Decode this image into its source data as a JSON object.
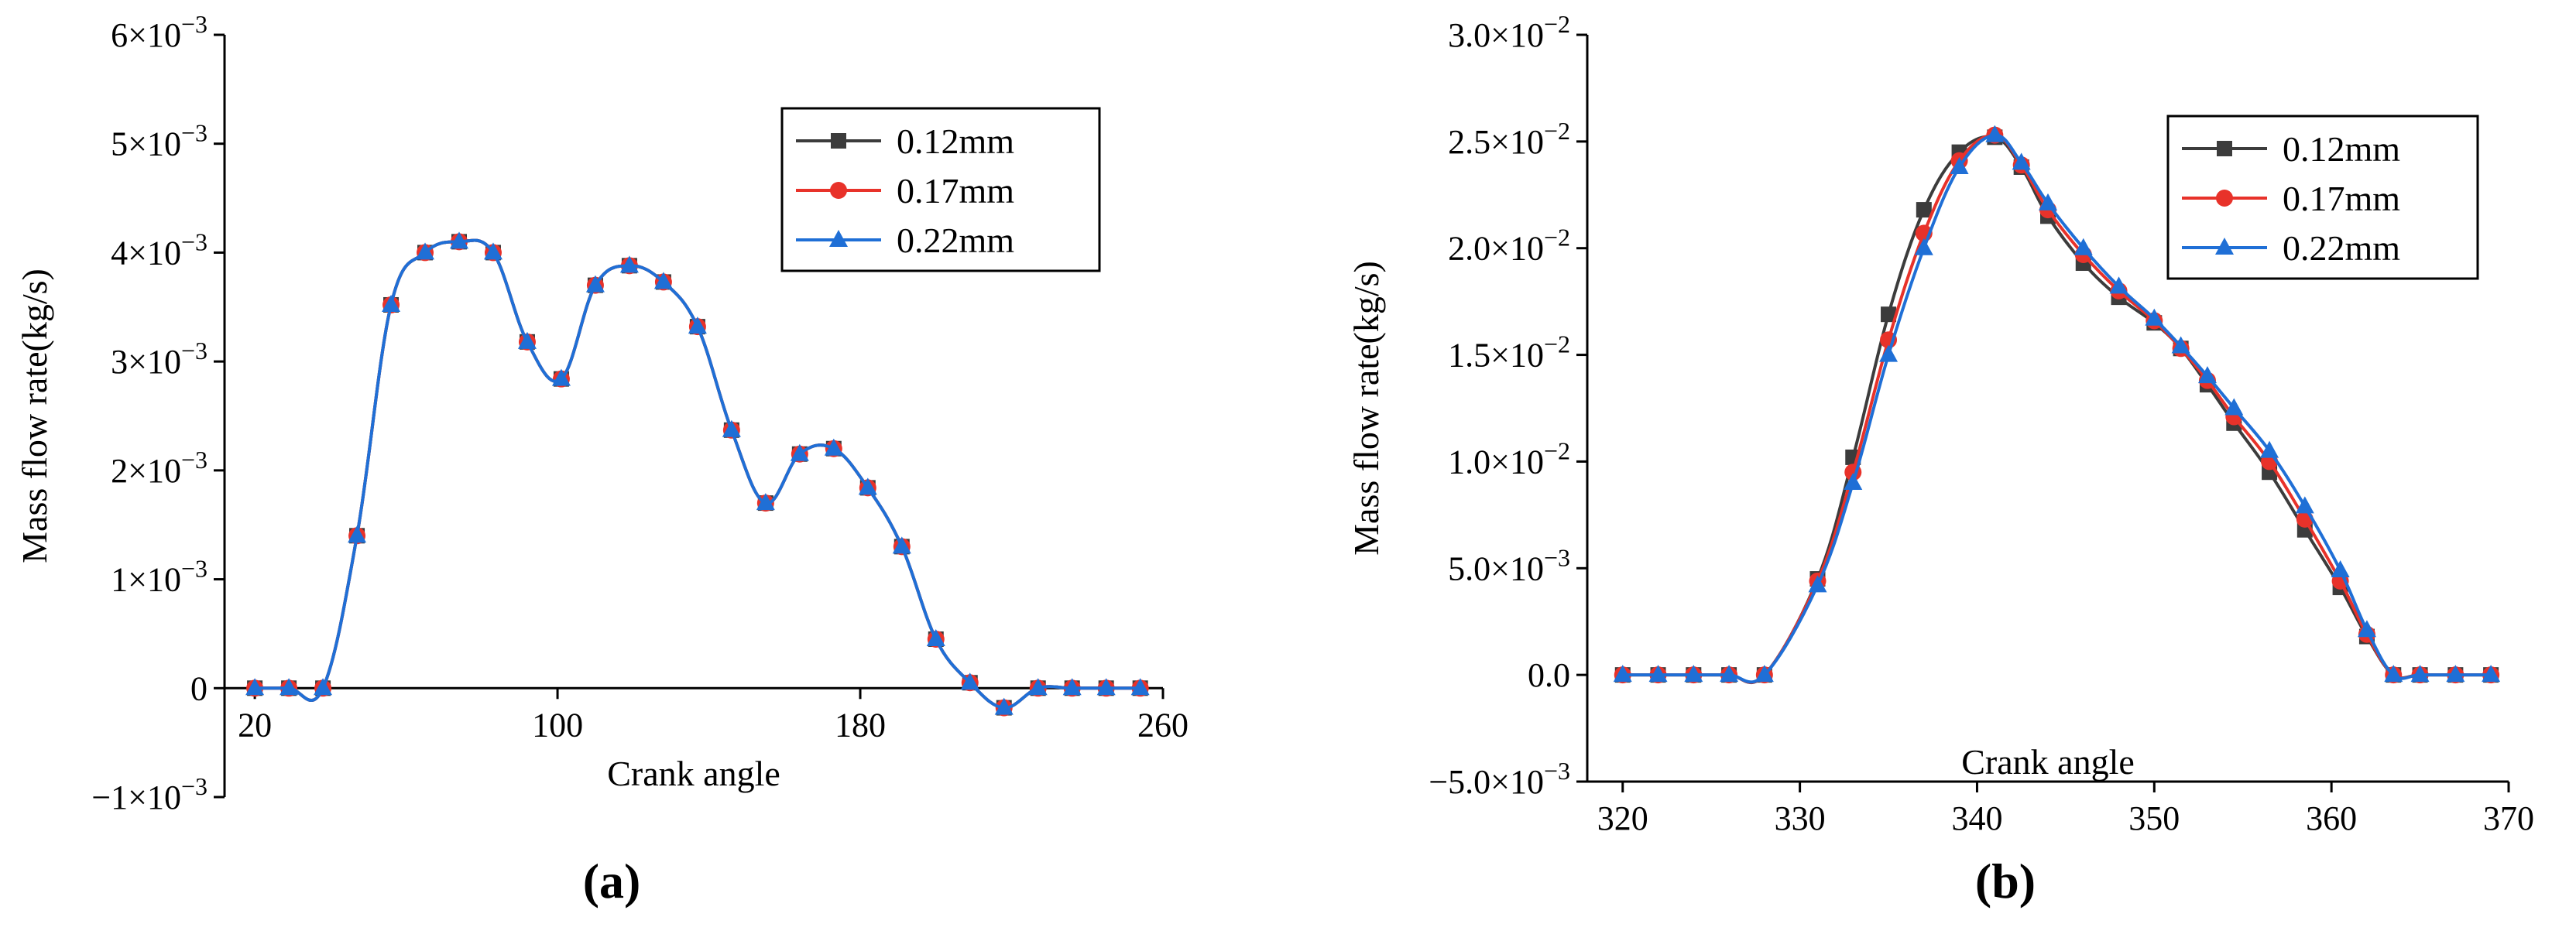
{
  "colors": {
    "0.12mm": "#3c3c3c",
    "0.17mm": "#e8322a",
    "0.22mm": "#1f6fd6"
  },
  "chart_data": [
    {
      "type": "line",
      "panel_label": "(a)",
      "xlabel": "Crank angle",
      "ylabel": "Mass flow rate(kg/s)",
      "xlim": [
        12,
        260
      ],
      "ylim": [
        -0.001,
        0.006
      ],
      "x_ticks": [
        {
          "value": 20,
          "label": "20"
        },
        {
          "value": 100,
          "label": "100"
        },
        {
          "value": 180,
          "label": "180"
        },
        {
          "value": 260,
          "label": "260"
        }
      ],
      "y_ticks": [
        {
          "value": -0.001,
          "mant": "−1×10",
          "exp": "−3"
        },
        {
          "value": 0,
          "mant": "0",
          "exp": ""
        },
        {
          "value": 0.001,
          "mant": "1×10",
          "exp": "−3"
        },
        {
          "value": 0.002,
          "mant": "2×10",
          "exp": "−3"
        },
        {
          "value": 0.003,
          "mant": "3×10",
          "exp": "−3"
        },
        {
          "value": 0.004,
          "mant": "4×10",
          "exp": "−3"
        },
        {
          "value": 0.005,
          "mant": "5×10",
          "exp": "−3"
        },
        {
          "value": 0.006,
          "mant": "6×10",
          "exp": "−3"
        }
      ],
      "legend": "top-right",
      "series": [
        {
          "name": "0.12mm",
          "marker": "square",
          "x": [
            20,
            29,
            38,
            47,
            56,
            65,
            74,
            83,
            92,
            101,
            110,
            119,
            128,
            137,
            146,
            155,
            164,
            173,
            182,
            191,
            200,
            209,
            218,
            227,
            236,
            245,
            254
          ],
          "y": [
            0,
            0,
            0,
            0.0014,
            0.00352,
            0.004,
            0.0041,
            0.004,
            0.00318,
            0.00284,
            0.0037,
            0.00388,
            0.00373,
            0.00332,
            0.00237,
            0.0017,
            0.00215,
            0.0022,
            0.00184,
            0.0013,
            0.00045,
            5e-05,
            -0.00018,
            0,
            0,
            0,
            0
          ]
        },
        {
          "name": "0.17mm",
          "marker": "circle",
          "x": [
            20,
            29,
            38,
            47,
            56,
            65,
            74,
            83,
            92,
            101,
            110,
            119,
            128,
            137,
            146,
            155,
            164,
            173,
            182,
            191,
            200,
            209,
            218,
            227,
            236,
            245,
            254
          ],
          "y": [
            0,
            0,
            0,
            0.0014,
            0.00352,
            0.004,
            0.0041,
            0.004,
            0.00318,
            0.00284,
            0.0037,
            0.00388,
            0.00373,
            0.00332,
            0.00237,
            0.0017,
            0.00215,
            0.0022,
            0.00184,
            0.0013,
            0.00045,
            5e-05,
            -0.00018,
            0,
            0,
            0,
            0
          ]
        },
        {
          "name": "0.22mm",
          "marker": "triangle",
          "x": [
            20,
            29,
            38,
            47,
            56,
            65,
            74,
            83,
            92,
            101,
            110,
            119,
            128,
            137,
            146,
            155,
            164,
            173,
            182,
            191,
            200,
            209,
            218,
            227,
            236,
            245,
            254
          ],
          "y": [
            0,
            0,
            0,
            0.0014,
            0.00352,
            0.004,
            0.0041,
            0.004,
            0.00318,
            0.00284,
            0.0037,
            0.00388,
            0.00373,
            0.00332,
            0.00237,
            0.0017,
            0.00215,
            0.0022,
            0.00184,
            0.0013,
            0.00045,
            5e-05,
            -0.00018,
            0,
            0,
            0,
            0
          ]
        }
      ]
    },
    {
      "type": "line",
      "panel_label": "(b)",
      "xlabel": "Crank angle",
      "ylabel": "Mass flow rate(kg/s)",
      "xlim": [
        318,
        370
      ],
      "ylim": [
        -0.005,
        0.03
      ],
      "x_ticks": [
        {
          "value": 320,
          "label": "320"
        },
        {
          "value": 330,
          "label": "330"
        },
        {
          "value": 340,
          "label": "340"
        },
        {
          "value": 350,
          "label": "350"
        },
        {
          "value": 360,
          "label": "360"
        },
        {
          "value": 370,
          "label": "370"
        }
      ],
      "y_ticks": [
        {
          "value": -0.005,
          "mant": "−5.0×10",
          "exp": "−3"
        },
        {
          "value": 0,
          "mant": "0.0",
          "exp": ""
        },
        {
          "value": 0.005,
          "mant": "5.0×10",
          "exp": "−3"
        },
        {
          "value": 0.01,
          "mant": "1.0×10",
          "exp": "−2"
        },
        {
          "value": 0.015,
          "mant": "1.5×10",
          "exp": "−2"
        },
        {
          "value": 0.02,
          "mant": "2.0×10",
          "exp": "−2"
        },
        {
          "value": 0.025,
          "mant": "2.5×10",
          "exp": "−2"
        },
        {
          "value": 0.03,
          "mant": "3.0×10",
          "exp": "−2"
        }
      ],
      "legend": "top-right",
      "series": [
        {
          "name": "0.12mm",
          "marker": "square",
          "x": [
            320,
            322,
            324,
            326,
            328,
            331,
            333,
            335,
            337,
            339,
            341,
            342.5,
            344,
            346,
            348,
            350,
            351.5,
            353,
            354.5,
            356.5,
            358.5,
            360.5,
            362,
            363.5,
            365,
            367,
            369
          ],
          "y": [
            0,
            0,
            0,
            0,
            0,
            0.0045,
            0.0102,
            0.0169,
            0.0218,
            0.0245,
            0.0252,
            0.0238,
            0.0215,
            0.0193,
            0.0177,
            0.0165,
            0.0153,
            0.0136,
            0.0118,
            0.0095,
            0.0068,
            0.0041,
            0.0018,
            0,
            0,
            0,
            0
          ]
        },
        {
          "name": "0.17mm",
          "marker": "circle",
          "x": [
            320,
            322,
            324,
            326,
            328,
            331,
            333,
            335,
            337,
            339,
            341,
            342.5,
            344,
            346,
            348,
            350,
            351.5,
            353,
            354.5,
            356.5,
            358.5,
            360.5,
            362,
            363.5,
            365,
            367,
            369
          ],
          "y": [
            0,
            0,
            0,
            0,
            0,
            0.0044,
            0.0095,
            0.0157,
            0.0207,
            0.0241,
            0.0253,
            0.0239,
            0.0218,
            0.0197,
            0.018,
            0.0166,
            0.0153,
            0.0138,
            0.0121,
            0.01,
            0.0073,
            0.0044,
            0.0019,
            0,
            0,
            0,
            0
          ]
        },
        {
          "name": "0.22mm",
          "marker": "triangle",
          "x": [
            320,
            322,
            324,
            326,
            328,
            331,
            333,
            335,
            337,
            339,
            341,
            342.5,
            344,
            346,
            348,
            350,
            351.5,
            353,
            354.5,
            356.5,
            358.5,
            360.5,
            362,
            363.5,
            365,
            367,
            369
          ],
          "y": [
            0,
            0,
            0,
            0,
            0,
            0.0042,
            0.009,
            0.015,
            0.02,
            0.0238,
            0.0253,
            0.024,
            0.0221,
            0.02,
            0.0182,
            0.0167,
            0.0154,
            0.014,
            0.0125,
            0.0105,
            0.0079,
            0.0049,
            0.0021,
            0,
            0,
            0,
            0
          ]
        }
      ]
    }
  ]
}
